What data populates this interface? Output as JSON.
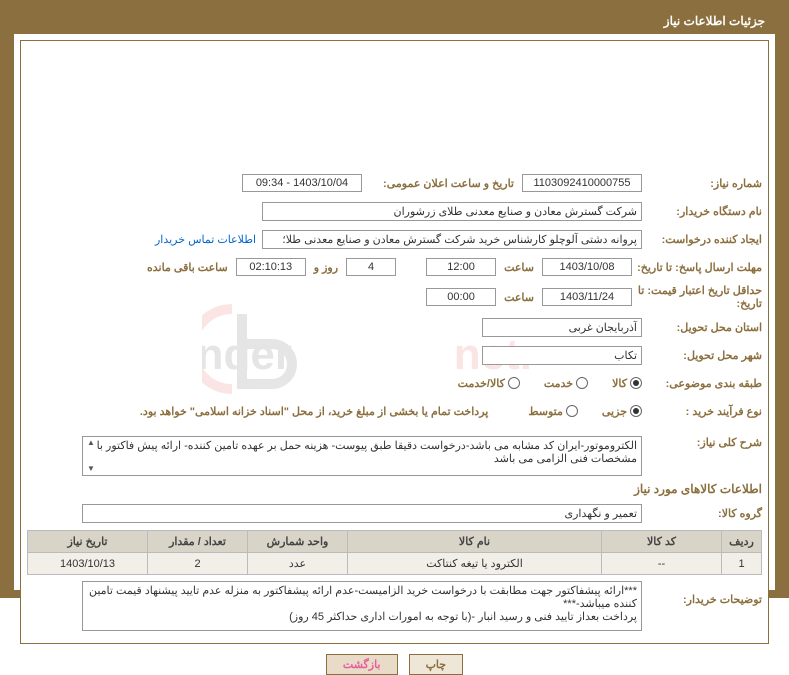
{
  "header": {
    "title": "جزئیات اطلاعات نیاز"
  },
  "labels": {
    "req_no": "شماره نیاز:",
    "announce_dt": "تاریخ و ساعت اعلان عمومی:",
    "buyer_org": "نام دستگاه خریدار:",
    "creator": "ایجاد کننده درخواست:",
    "contact_link": "اطلاعات تماس خریدار",
    "reply_deadline": "مهلت ارسال پاسخ: تا تاریخ:",
    "hour": "ساعت",
    "days_and": "روز و",
    "hours_remain": "ساعت باقی مانده",
    "price_valid": "حداقل تاریخ اعتبار قیمت: تا تاریخ:",
    "deliv_prov": "استان محل تحویل:",
    "deliv_city": "شهر محل تحویل:",
    "category": "طبقه بندی موضوعی:",
    "proc_type": "نوع فرآیند خرید :",
    "payment_note": "پرداخت تمام یا بخشی از مبلغ خرید، از محل \"اسناد خزانه اسلامی\" خواهد بود.",
    "general_desc": "شرح کلی نیاز:",
    "items_title": "اطلاعات کالاهای مورد نیاز",
    "item_group": "گروه کالا:",
    "buyer_notes": "توضیحات خریدار:"
  },
  "values": {
    "req_no": "1103092410000755",
    "announce_dt": "1403/10/04 - 09:34",
    "buyer_org": "شرکت گسترش معادن و صنایع معدنی طلای زرشوران",
    "creator": "پروانه  دشتی آلوچلو کارشناس خرید شرکت گسترش معادن و صنایع معدنی طلا؛",
    "reply_date": "1403/10/08",
    "reply_hour": "12:00",
    "days": "4",
    "countdown": "02:10:13",
    "price_date": "1403/11/24",
    "price_hour": "00:00",
    "deliv_prov": "آذربایجان غربی",
    "deliv_city": "تکاب",
    "general_desc": "الکتروموتور-ایران کد مشابه می باشد-درخواست دقیقا طبق پیوست- هزینه حمل بر عهده تامین کننده- ارائه پیش فاکتور با مشخصات فنی الزامی می باشد",
    "item_group": "تعمیر و نگهداری",
    "buyer_notes": "***ارائه پيشفاكتور جهت مطابقت با درخواست خريد الزاميست-عدم ارائه پيشفاكتور به منزله عدم تاييد پيشنهاد قيمت تامين كننده ميباشد-***\nپرداخت بعداز تاييد فنی و رسيد انبار -(با توجه به امورات اداری حداكثر 45 روز)"
  },
  "radios": {
    "category": [
      {
        "label": "کالا",
        "checked": true
      },
      {
        "label": "خدمت",
        "checked": false
      },
      {
        "label": "کالا/خدمت",
        "checked": false
      }
    ],
    "proc_type": [
      {
        "label": "جزیی",
        "checked": true
      },
      {
        "label": "متوسط",
        "checked": false
      }
    ]
  },
  "table": {
    "headers": [
      "ردیف",
      "کد کالا",
      "نام کالا",
      "واحد شمارش",
      "تعداد / مقدار",
      "تاریخ نیاز"
    ],
    "row": {
      "idx": "1",
      "code": "--",
      "name": "الکترود یا تیغه کنتاکت",
      "unit": "عدد",
      "qty": "2",
      "date": "1403/10/13"
    }
  },
  "buttons": {
    "print": "چاپ",
    "back": "بازگشت"
  },
  "watermark": {
    "text_main": "PrinTender",
    "text_suffix": ".net",
    "color_main": "#333333",
    "color_accent": "#d9352b",
    "opacity": 0.12
  }
}
